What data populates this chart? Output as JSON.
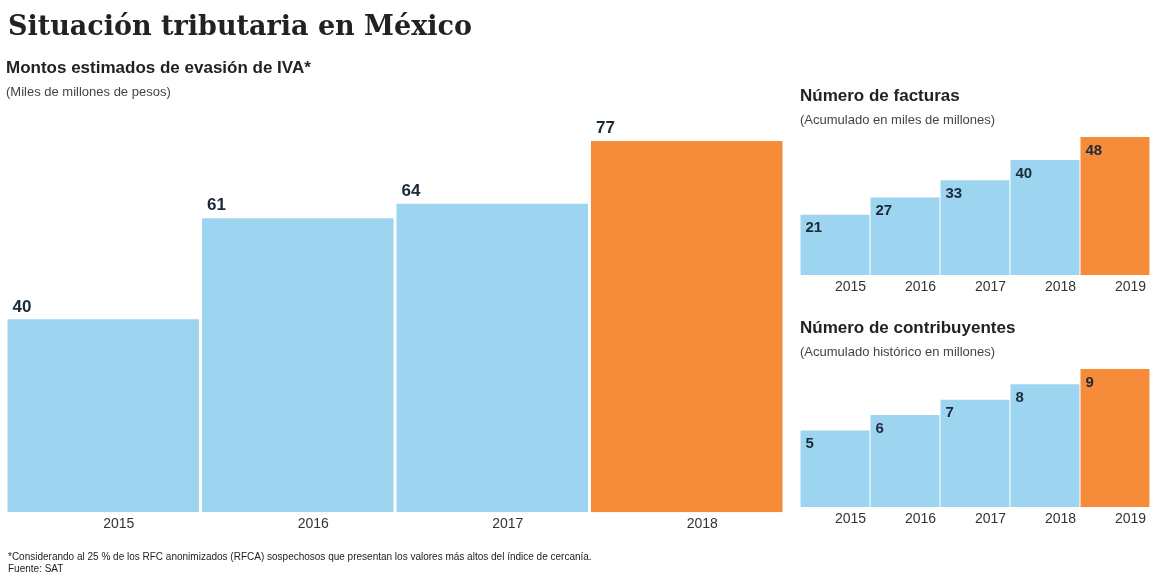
{
  "chart_data": [
    {
      "type": "bar",
      "title": "Montos estimados de evasión de IVA*",
      "subtitle": "(Miles de millones de pesos)",
      "categories": [
        "2015",
        "2016",
        "2017",
        "2018"
      ],
      "values": [
        40,
        61,
        64,
        77
      ],
      "colors": [
        "#9dd4f0",
        "#9dd4f0",
        "#9dd4f0",
        "#f68b3a"
      ],
      "data_labels": true,
      "tick_labels": "x",
      "grid": false,
      "legend": false,
      "annotations": [
        "Situación tributaria en México",
        "*Considerando al 25 % de los RFC anonimizados (RFCA) sospechosos que presentan los valores más altos del índice de cercanía.",
        "Fuente: SAT"
      ]
    },
    {
      "type": "bar",
      "title": "Número de facturas",
      "subtitle": "(Acumulado en miles de millones)",
      "categories": [
        "2015",
        "2016",
        "2017",
        "2018",
        "2019"
      ],
      "values": [
        21,
        27,
        33,
        40,
        48
      ],
      "colors": [
        "#9dd4f0",
        "#9dd4f0",
        "#9dd4f0",
        "#9dd4f0",
        "#f68b3a"
      ],
      "data_labels": true,
      "tick_labels": "x",
      "grid": false,
      "legend": false
    },
    {
      "type": "bar",
      "title": "Número de contribuyentes",
      "subtitle": "(Acumulado histórico en millones)",
      "categories": [
        "2015",
        "2016",
        "2017",
        "2018",
        "2019"
      ],
      "values": [
        5,
        6,
        7,
        8,
        9
      ],
      "colors": [
        "#9dd4f0",
        "#9dd4f0",
        "#9dd4f0",
        "#9dd4f0",
        "#f68b3a"
      ],
      "data_labels": true,
      "tick_labels": "x",
      "grid": false,
      "legend": false
    }
  ]
}
